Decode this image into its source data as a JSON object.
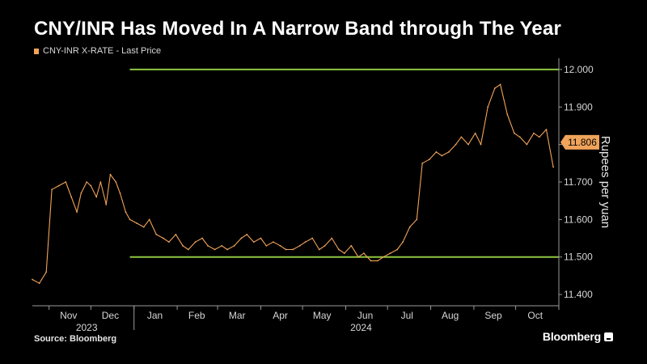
{
  "title": "CNY/INR Has Moved In A Narrow Band through The Year",
  "legend": {
    "label": "CNY-INR X-RATE - Last Price"
  },
  "source": "Source: Bloomberg",
  "brand": "Bloomberg",
  "colors": {
    "series": "#f0a35a",
    "band": "#8ec63f",
    "background": "#000000"
  },
  "chart_data": {
    "type": "line",
    "title": "CNY/INR Has Moved In A Narrow Band through The Year",
    "ylabel": "Rupees per yuan",
    "xlabel": "",
    "y_axis_side": "right",
    "ylim": [
      11.37,
      12.03
    ],
    "yticks": [
      "12.000",
      "11.900",
      "11.800",
      "11.700",
      "11.600",
      "11.500",
      "11.400"
    ],
    "ytick_values": [
      12.0,
      11.9,
      11.8,
      11.7,
      11.6,
      11.5,
      11.4
    ],
    "xlim": [
      "2023-10-20",
      "2024-11-01"
    ],
    "x_ticks": [
      {
        "label": "Nov",
        "date": "2023-11-15"
      },
      {
        "label": "Dec",
        "date": "2023-12-15"
      },
      {
        "label": "Jan",
        "date": "2024-01-16"
      },
      {
        "label": "Feb",
        "date": "2024-02-15"
      },
      {
        "label": "Mar",
        "date": "2024-03-15"
      },
      {
        "label": "Apr",
        "date": "2024-04-15"
      },
      {
        "label": "May",
        "date": "2024-05-15"
      },
      {
        "label": "Jun",
        "date": "2024-06-15"
      },
      {
        "label": "Jul",
        "date": "2024-07-15"
      },
      {
        "label": "Aug",
        "date": "2024-08-15"
      },
      {
        "label": "Sep",
        "date": "2024-09-15"
      },
      {
        "label": "Oct",
        "date": "2024-10-15"
      }
    ],
    "year_labels": [
      {
        "label": "2023",
        "date": "2023-11-28"
      },
      {
        "label": "2024",
        "date": "2024-06-12"
      }
    ],
    "reference_lines": [
      {
        "y": 12.0,
        "from": "2023-12-29",
        "to": "2024-11-01"
      },
      {
        "y": 11.5,
        "from": "2023-12-29",
        "to": "2024-11-01"
      }
    ],
    "last_value": "11.806",
    "series": [
      {
        "name": "CNY-INR X-RATE - Last Price",
        "x": [
          "2023-10-20",
          "2023-10-25",
          "2023-10-30",
          "2023-11-03",
          "2023-11-08",
          "2023-11-13",
          "2023-11-17",
          "2023-11-21",
          "2023-11-24",
          "2023-11-28",
          "2023-12-01",
          "2023-12-05",
          "2023-12-08",
          "2023-12-12",
          "2023-12-15",
          "2023-12-19",
          "2023-12-22",
          "2023-12-26",
          "2023-12-29",
          "2024-01-03",
          "2024-01-08",
          "2024-01-12",
          "2024-01-17",
          "2024-01-22",
          "2024-01-26",
          "2024-01-31",
          "2024-02-05",
          "2024-02-09",
          "2024-02-14",
          "2024-02-19",
          "2024-02-23",
          "2024-02-28",
          "2024-03-04",
          "2024-03-08",
          "2024-03-13",
          "2024-03-18",
          "2024-03-22",
          "2024-03-27",
          "2024-04-01",
          "2024-04-05",
          "2024-04-10",
          "2024-04-15",
          "2024-04-19",
          "2024-04-24",
          "2024-04-29",
          "2024-05-03",
          "2024-05-08",
          "2024-05-13",
          "2024-05-17",
          "2024-05-22",
          "2024-05-27",
          "2024-05-31",
          "2024-06-05",
          "2024-06-10",
          "2024-06-14",
          "2024-06-19",
          "2024-06-24",
          "2024-06-28",
          "2024-07-03",
          "2024-07-08",
          "2024-07-12",
          "2024-07-17",
          "2024-07-22",
          "2024-07-26",
          "2024-07-31",
          "2024-08-05",
          "2024-08-09",
          "2024-08-14",
          "2024-08-19",
          "2024-08-23",
          "2024-08-28",
          "2024-09-02",
          "2024-09-06",
          "2024-09-11",
          "2024-09-16",
          "2024-09-20",
          "2024-09-25",
          "2024-09-30",
          "2024-10-04",
          "2024-10-09",
          "2024-10-14",
          "2024-10-18",
          "2024-10-23",
          "2024-10-28"
        ],
        "values": [
          11.44,
          11.43,
          11.46,
          11.68,
          11.69,
          11.7,
          11.66,
          11.62,
          11.67,
          11.7,
          11.69,
          11.66,
          11.7,
          11.64,
          11.72,
          11.7,
          11.67,
          11.62,
          11.6,
          11.59,
          11.58,
          11.6,
          11.56,
          11.55,
          11.54,
          11.56,
          11.53,
          11.52,
          11.54,
          11.55,
          11.53,
          11.52,
          11.53,
          11.52,
          11.53,
          11.55,
          11.56,
          11.54,
          11.55,
          11.53,
          11.54,
          11.53,
          11.52,
          11.52,
          11.53,
          11.54,
          11.55,
          11.52,
          11.53,
          11.55,
          11.52,
          11.51,
          11.53,
          11.5,
          11.51,
          11.49,
          11.49,
          11.5,
          11.51,
          11.52,
          11.54,
          11.58,
          11.6,
          11.75,
          11.76,
          11.78,
          11.77,
          11.78,
          11.8,
          11.82,
          11.8,
          11.83,
          11.8,
          11.9,
          11.95,
          11.96,
          11.88,
          11.83,
          11.82,
          11.8,
          11.83,
          11.82,
          11.84,
          11.74
        ]
      }
    ]
  }
}
